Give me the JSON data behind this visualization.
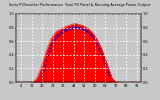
{
  "title": "Solar PV/Inverter Performance  Total PV Panel & Running Average Power Output",
  "bg_color": "#c8c8c8",
  "plot_bg_color": "#c8c8c8",
  "fill_color": "#ff0000",
  "line_color": "#cc0000",
  "avg_color": "#0000cc",
  "grid_color": "#ffffff",
  "ylim": [
    0,
    1.0
  ],
  "xlim": [
    0,
    95
  ],
  "x_ticks": [
    4,
    12,
    20,
    28,
    36,
    44,
    52,
    60,
    68,
    76,
    84,
    92
  ],
  "y_ticks_left": [
    0.0,
    0.2,
    0.4,
    0.6,
    0.8,
    1.0
  ],
  "pv_data": [
    0,
    0,
    0,
    0,
    0,
    0,
    0,
    0,
    0,
    0,
    0,
    0,
    0.005,
    0.01,
    0.02,
    0.04,
    0.07,
    0.11,
    0.16,
    0.22,
    0.28,
    0.34,
    0.4,
    0.46,
    0.51,
    0.56,
    0.61,
    0.65,
    0.68,
    0.71,
    0.73,
    0.75,
    0.76,
    0.77,
    0.78,
    0.79,
    0.8,
    0.81,
    0.82,
    0.83,
    0.83,
    0.84,
    0.85,
    0.85,
    0.86,
    0.86,
    0.86,
    0.85,
    0.85,
    0.84,
    0.84,
    0.83,
    0.82,
    0.81,
    0.8,
    0.79,
    0.77,
    0.75,
    0.73,
    0.71,
    0.68,
    0.65,
    0.62,
    0.58,
    0.54,
    0.5,
    0.45,
    0.4,
    0.35,
    0.29,
    0.23,
    0.17,
    0.12,
    0.07,
    0.04,
    0.02,
    0.01,
    0.005,
    0,
    0,
    0,
    0,
    0,
    0,
    0,
    0,
    0,
    0,
    0,
    0,
    0,
    0,
    0,
    0
  ],
  "avg_data": [
    null,
    null,
    null,
    null,
    null,
    null,
    null,
    null,
    null,
    null,
    null,
    null,
    null,
    null,
    null,
    null,
    null,
    null,
    null,
    null,
    0.1,
    0.18,
    0.25,
    0.32,
    0.39,
    0.45,
    0.5,
    0.54,
    0.58,
    0.62,
    0.65,
    0.67,
    0.69,
    0.71,
    0.73,
    0.74,
    0.75,
    0.76,
    0.77,
    0.78,
    0.79,
    0.79,
    0.8,
    0.8,
    0.81,
    0.81,
    0.81,
    0.81,
    0.8,
    0.8,
    0.79,
    0.78,
    0.77,
    0.76,
    0.75,
    0.73,
    0.71,
    0.69,
    0.67,
    0.64,
    0.61,
    0.58,
    0.54,
    0.5,
    0.46,
    0.41,
    0.36,
    0.31,
    0.26,
    0.21,
    0.15,
    0.1,
    null,
    null,
    null,
    null,
    null,
    null,
    null,
    null,
    null,
    null,
    null,
    null,
    null,
    null,
    null,
    null,
    null,
    null,
    null
  ]
}
